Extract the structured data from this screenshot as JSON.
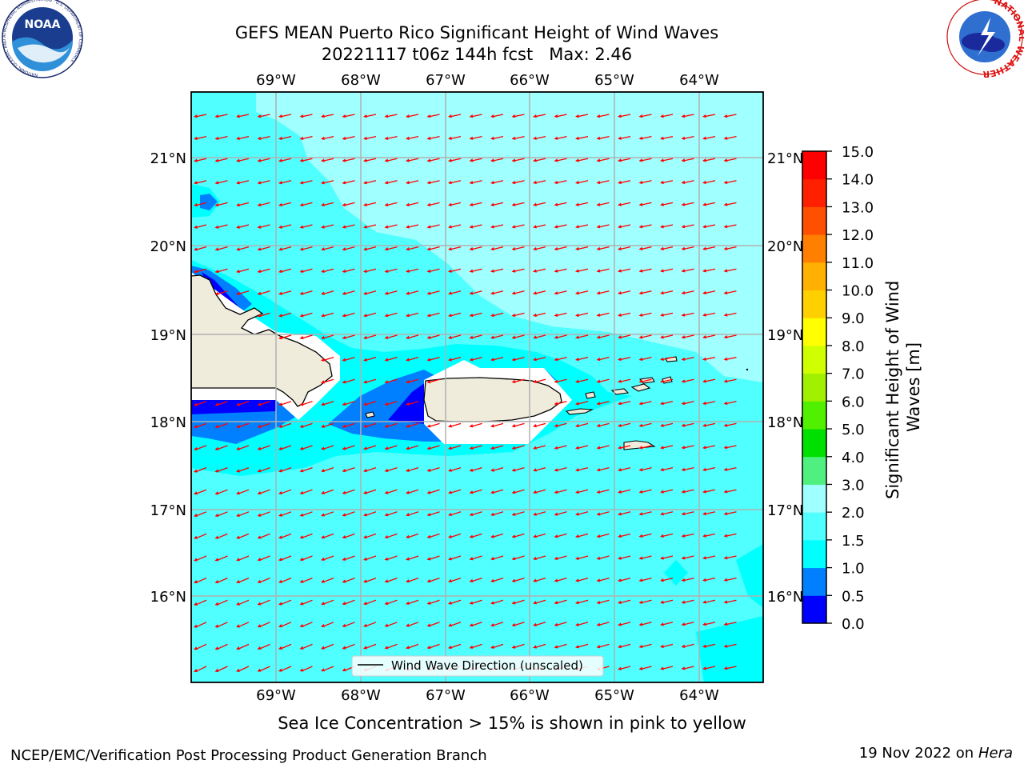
{
  "header": {
    "title_line1": "GEFS MEAN Puerto Rico Significant Height of Wind Waves",
    "title_line2": "20221117 t06z 144h fcst   Max: 2.46"
  },
  "logos": {
    "noaa": {
      "text": "NOAA",
      "ring_text": "NATIONAL OCEANIC AND ATMOSPHERIC ADMINISTRATION · U.S. DEPARTMENT OF COMMERCE"
    },
    "nws": {
      "ring_text": "NATIONAL WEATHER SERVICE"
    }
  },
  "map": {
    "lon_labels": [
      "69°W",
      "68°W",
      "67°W",
      "66°W",
      "65°W",
      "64°W"
    ],
    "lat_labels": [
      "21°N",
      "20°N",
      "19°N",
      "18°N",
      "17°N",
      "16°N"
    ],
    "legend_label": "Wind Wave Direction (unscaled)",
    "arrow_color": "#ff0000",
    "land_color": "#efecdc"
  },
  "colorbar": {
    "label": "Significant Height of Wind Waves [m]",
    "ticks": [
      "0.0",
      "0.5",
      "1.0",
      "1.5",
      "2.0",
      "3.0",
      "4.0",
      "5.0",
      "6.0",
      "7.0",
      "8.0",
      "9.0",
      "10.0",
      "11.0",
      "12.0",
      "13.0",
      "14.0",
      "15.0"
    ],
    "colors": [
      "#0000ff",
      "#0080ff",
      "#00ffff",
      "#50ffff",
      "#a0ffff",
      "#50f080",
      "#00e000",
      "#50f000",
      "#a0f000",
      "#d0ff00",
      "#ffff00",
      "#ffd000",
      "#ffb000",
      "#ff8000",
      "#ff5000",
      "#ff2000",
      "#ff0000"
    ]
  },
  "footer": {
    "note": "Sea Ice Concentration > 15% is shown in pink to yellow",
    "left": "NCEP/EMC/Verification Post Processing Product Generation Branch",
    "right_date": "19 Nov 2022 on",
    "right_host": "Hera"
  }
}
